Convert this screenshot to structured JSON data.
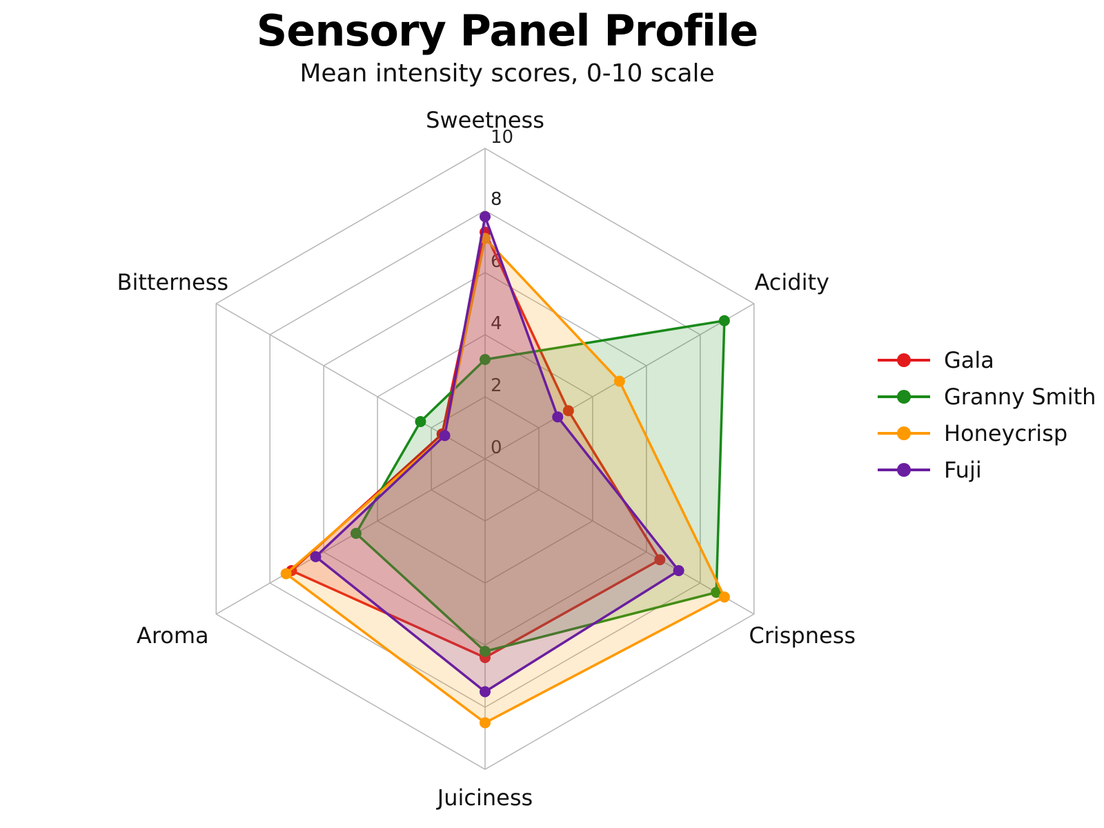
{
  "chart_data": {
    "type": "radar",
    "title": "Sensory Panel Profile",
    "subtitle": "Mean intensity scores, 0-10 scale",
    "axes": [
      "Sweetness",
      "Acidity",
      "Crispness",
      "Juiciness",
      "Aroma",
      "Bitterness"
    ],
    "r_ticks": [
      "0",
      "2",
      "4",
      "6",
      "8",
      "10"
    ],
    "rlim": [
      0,
      10
    ],
    "legend_position": "right",
    "series": [
      {
        "name": "Gala",
        "color": "#e31a1c",
        "values": [
          7.3,
          3.1,
          6.5,
          6.4,
          7.2,
          1.6
        ]
      },
      {
        "name": "Granny Smith",
        "color": "#1a8a1a",
        "values": [
          3.2,
          8.9,
          8.6,
          6.2,
          4.8,
          2.4
        ]
      },
      {
        "name": "Honeycrisp",
        "color": "#ff9900",
        "values": [
          7.1,
          5.0,
          8.9,
          8.5,
          7.4,
          1.5
        ]
      },
      {
        "name": "Fuji",
        "color": "#6a1ea0",
        "values": [
          7.8,
          2.7,
          7.2,
          7.5,
          6.3,
          1.5
        ]
      }
    ]
  }
}
